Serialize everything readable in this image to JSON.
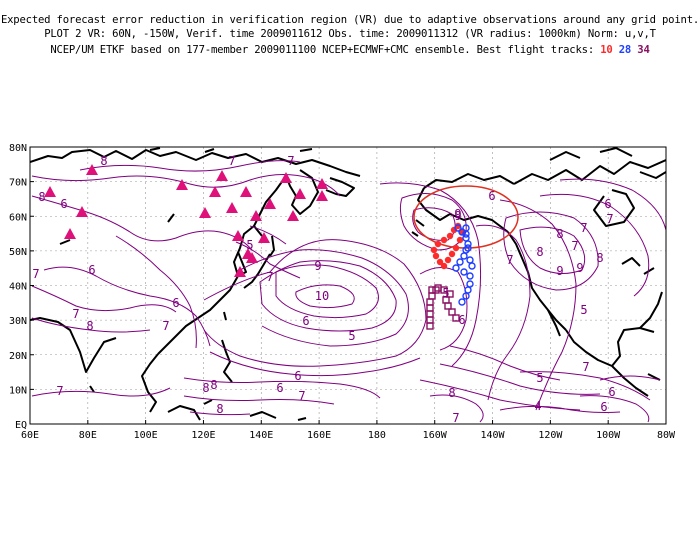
{
  "header": {
    "line1": "Expected forecast error reduction in verification region (VR) due to adaptive observations around any grid point.",
    "line2": "PLOT 2 VR: 60N, -150W, Verif. time 2009011612 Obs. time: 2009011312 (VR radius: 1000km) Norm: u,v,T",
    "line3_prefix": "NCEP/UM ETKF based on 177-member 2009011100 NCEP+ECMWF+CMC ensemble. Best flight tracks:",
    "tracks": [
      {
        "label": "10",
        "color": "#ff2a2a"
      },
      {
        "label": "28",
        "color": "#1f3fff"
      },
      {
        "label": "34",
        "color": "#8a1060"
      }
    ]
  },
  "map": {
    "lat_labels": [
      "80N",
      "70N",
      "60N",
      "50N",
      "40N",
      "30N",
      "20N",
      "10N",
      "EQ"
    ],
    "lon_labels": [
      "60E",
      "80E",
      "100E",
      "120E",
      "140E",
      "160E",
      "180",
      "160W",
      "140W",
      "120W",
      "100W",
      "80W"
    ],
    "contour_color": "#800080",
    "contour_labels": [
      "8",
      "7",
      "7",
      "8",
      "6",
      "6",
      "6",
      "7",
      "8",
      "7",
      "7",
      "7",
      "5",
      "6",
      "7",
      "6",
      "6",
      "8",
      "5",
      "7",
      "8",
      "8",
      "9",
      "9",
      "9",
      "10",
      "8",
      "7",
      "6",
      "5",
      "6",
      "7",
      "8",
      "7",
      "8",
      "9",
      "9",
      "8",
      "7",
      "6",
      "5",
      "6",
      "7",
      "5",
      "4",
      "6",
      "7"
    ],
    "verification_region": {
      "center": "60N 150W",
      "radius": "1000km",
      "color": "#e03020"
    },
    "triangle_color": "#e0107a"
  }
}
